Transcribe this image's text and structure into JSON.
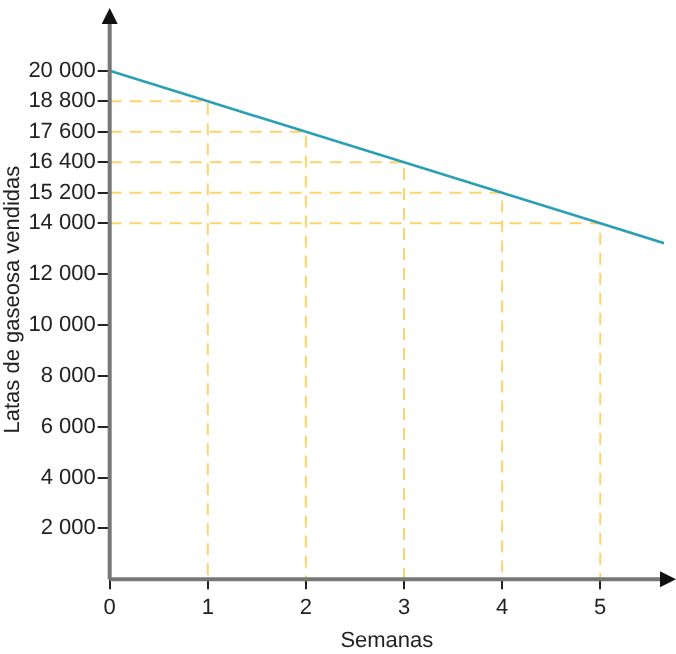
{
  "chart_data": {
    "type": "line",
    "xlabel": "Semanas",
    "ylabel": "Latas de gaseosa vendidas",
    "series": [
      {
        "color": "#2a9fb5",
        "x": [
          0,
          1,
          2,
          3,
          4,
          5,
          5.65
        ],
        "values": [
          20000,
          18800,
          17600,
          16400,
          15200,
          14000,
          13220
        ]
      },
      {
        "color": "#ffd36b",
        "line_style": "dashed",
        "x": [
          0,
          1,
          1
        ],
        "values": [
          18800,
          18800,
          0
        ]
      },
      {
        "color": "#ffd36b",
        "line_style": "dashed",
        "x": [
          0,
          2,
          2
        ],
        "values": [
          17600,
          17600,
          0
        ]
      },
      {
        "color": "#ffd36b",
        "line_style": "dashed",
        "x": [
          0,
          3,
          3
        ],
        "values": [
          16400,
          16400,
          0
        ]
      },
      {
        "color": "#ffd36b",
        "line_style": "dashed",
        "x": [
          0,
          4,
          4
        ],
        "values": [
          15200,
          15200,
          0
        ]
      },
      {
        "color": "#ffd36b",
        "line_style": "dashed",
        "x": [
          0,
          5,
          5
        ],
        "values": [
          14000,
          14000,
          0
        ]
      }
    ],
    "xlim": [
      0,
      5.65
    ],
    "xticks": [
      0,
      1,
      2,
      3,
      4,
      5
    ],
    "ylim": [
      0,
      22000
    ],
    "yticks": [
      {
        "value": 2000,
        "label": "2 000"
      },
      {
        "value": 4000,
        "label": "4 000"
      },
      {
        "value": 6000,
        "label": "6 000"
      },
      {
        "value": 8000,
        "label": "8 000"
      },
      {
        "value": 10000,
        "label": "10 000"
      },
      {
        "value": 12000,
        "label": "12 000"
      },
      {
        "value": 14000,
        "label": "14 000"
      },
      {
        "value": 15200,
        "label": "15 200"
      },
      {
        "value": 16400,
        "label": "16 400"
      },
      {
        "value": 17600,
        "label": "17 600"
      },
      {
        "value": 18800,
        "label": "18 800"
      },
      {
        "value": 20000,
        "label": "20 000"
      }
    ],
    "grid": false,
    "legend": false,
    "marker": "none",
    "line_style": "solid"
  }
}
